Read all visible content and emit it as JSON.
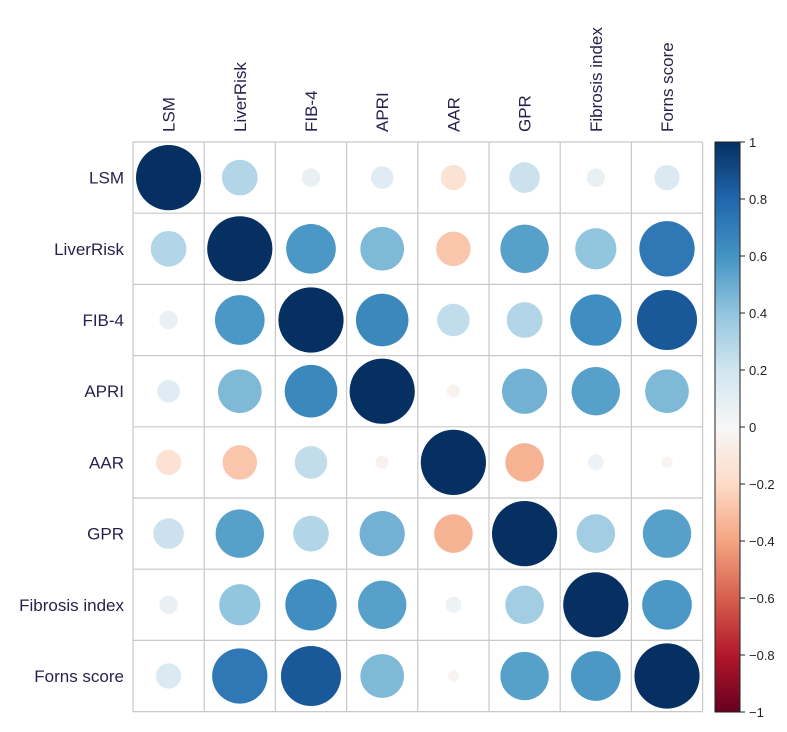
{
  "chart_data": {
    "type": "heatmap",
    "style": "correlation-circles",
    "variables": [
      "LSM",
      "LiverRisk",
      "FIB-4",
      "APRI",
      "AAR",
      "GPR",
      "Fibrosis index",
      "Forns score"
    ],
    "matrix": [
      [
        1.0,
        0.3,
        0.08,
        0.12,
        -0.15,
        0.22,
        0.08,
        0.15
      ],
      [
        0.3,
        1.0,
        0.58,
        0.45,
        -0.28,
        0.55,
        0.4,
        0.72
      ],
      [
        0.08,
        0.58,
        1.0,
        0.65,
        0.25,
        0.3,
        0.62,
        0.85
      ],
      [
        0.12,
        0.45,
        0.65,
        1.0,
        -0.04,
        0.48,
        0.55,
        0.45
      ],
      [
        -0.15,
        -0.28,
        0.25,
        -0.04,
        1.0,
        -0.35,
        0.06,
        -0.03
      ],
      [
        0.22,
        0.55,
        0.3,
        0.48,
        -0.35,
        1.0,
        0.35,
        0.55
      ],
      [
        0.08,
        0.4,
        0.62,
        0.55,
        0.06,
        0.35,
        1.0,
        0.58
      ],
      [
        0.15,
        0.72,
        0.85,
        0.45,
        -0.03,
        0.55,
        0.58,
        1.0
      ]
    ],
    "colorbar": {
      "range": [
        -1,
        1
      ],
      "ticks": [
        "1",
        "0.8",
        "0.6",
        "0.4",
        "0.2",
        "0",
        "−0.2",
        "−0.4",
        "−0.6",
        "−0.8",
        "−1"
      ],
      "colors": [
        "#67001f",
        "#b2182b",
        "#d6604d",
        "#f4a582",
        "#fddbc7",
        "#f7f7f7",
        "#d1e5f0",
        "#92c5de",
        "#4393c3",
        "#2166ac",
        "#053061"
      ]
    },
    "grid": true,
    "legend": "right"
  }
}
